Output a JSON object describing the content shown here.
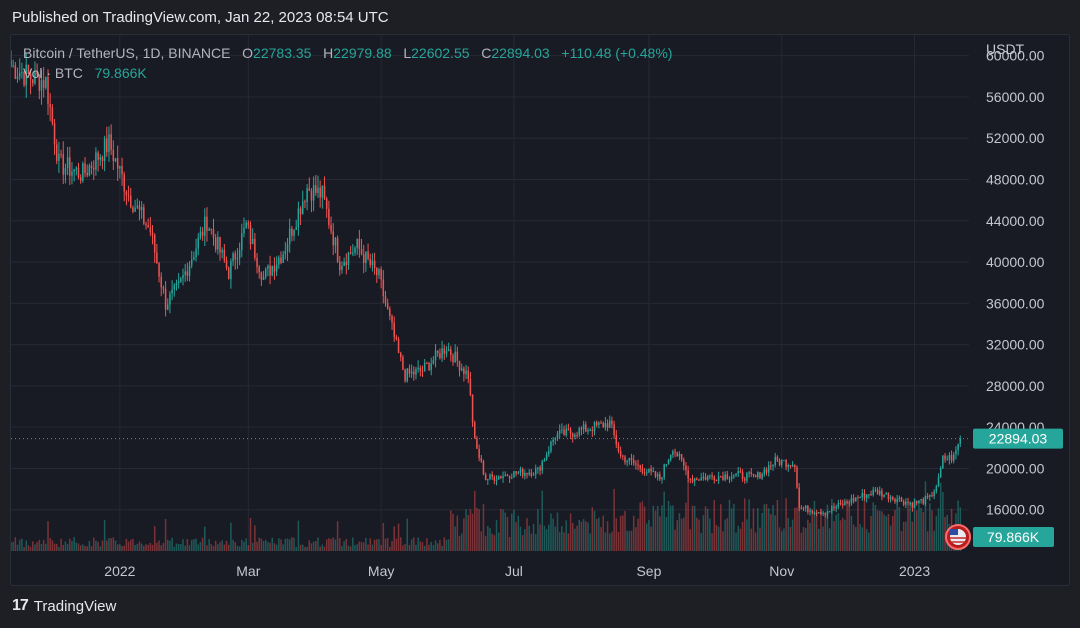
{
  "published": "Published on TradingView.com, Jan 22, 2023 08:54 UTC",
  "legend": {
    "symbol": "Bitcoin / TetherUS, 1D, BINANCE",
    "o_label": "O",
    "o_value": "22783.35",
    "h_label": "H",
    "h_value": "22979.88",
    "l_label": "L",
    "l_value": "22602.55",
    "c_label": "C",
    "c_value": "22894.03",
    "change": "+110.48 (+0.48%)",
    "vol_label": "Vol · BTC",
    "vol_value": "79.866K"
  },
  "footer": {
    "brand": "TradingView",
    "logo_text": "17"
  },
  "colors": {
    "up": "#26a69a",
    "down": "#ef5350",
    "background": "#181a24",
    "grid": "#262935"
  },
  "chart_data": {
    "type": "candlestick",
    "symbol": "BTC/USDT",
    "interval": "1D",
    "ylabel": "USDT",
    "ylim": [
      12000,
      62000
    ],
    "yticks": [
      16000,
      20000,
      24000,
      28000,
      32000,
      36000,
      40000,
      44000,
      48000,
      52000,
      56000,
      60000
    ],
    "yticks_labels": [
      "16000.00",
      "20000.00",
      "24000.00",
      "28000.00",
      "32000.00",
      "36000.00",
      "40000.00",
      "44000.00",
      "48000.00",
      "52000.00",
      "56000.00",
      "60000.00"
    ],
    "xlim": [
      "2021-11-12",
      "2023-01-26"
    ],
    "xticks": [
      {
        "date": "2022-01-01",
        "label": "2022"
      },
      {
        "date": "2022-03-01",
        "label": "Mar"
      },
      {
        "date": "2022-05-01",
        "label": "May"
      },
      {
        "date": "2022-07-01",
        "label": "Jul"
      },
      {
        "date": "2022-09-01",
        "label": "Sep"
      },
      {
        "date": "2022-11-01",
        "label": "Nov"
      },
      {
        "date": "2023-01-01",
        "label": "2023"
      }
    ],
    "last_price": 22894.03,
    "last_price_label": "22894.03",
    "last_volume_label": "79.866K",
    "price_path": [
      {
        "date": "2021-11-12",
        "close": 59000
      },
      {
        "date": "2021-11-20",
        "close": 58000
      },
      {
        "date": "2021-11-28",
        "close": 57500
      },
      {
        "date": "2021-12-04",
        "close": 49500
      },
      {
        "date": "2021-12-15",
        "close": 48500
      },
      {
        "date": "2021-12-27",
        "close": 51500
      },
      {
        "date": "2022-01-05",
        "close": 46500
      },
      {
        "date": "2022-01-15",
        "close": 43000
      },
      {
        "date": "2022-01-22",
        "close": 36000
      },
      {
        "date": "2022-01-28",
        "close": 37500
      },
      {
        "date": "2022-02-10",
        "close": 44000
      },
      {
        "date": "2022-02-20",
        "close": 39000
      },
      {
        "date": "2022-02-28",
        "close": 43500
      },
      {
        "date": "2022-03-08",
        "close": 38500
      },
      {
        "date": "2022-03-17",
        "close": 41000
      },
      {
        "date": "2022-03-28",
        "close": 47200
      },
      {
        "date": "2022-04-04",
        "close": 46500
      },
      {
        "date": "2022-04-12",
        "close": 40000
      },
      {
        "date": "2022-04-20",
        "close": 41500
      },
      {
        "date": "2022-04-30",
        "close": 38500
      },
      {
        "date": "2022-05-09",
        "close": 31000
      },
      {
        "date": "2022-05-12",
        "close": 29000
      },
      {
        "date": "2022-05-20",
        "close": 29500
      },
      {
        "date": "2022-05-31",
        "close": 31800
      },
      {
        "date": "2022-06-10",
        "close": 29000
      },
      {
        "date": "2022-06-13",
        "close": 22500
      },
      {
        "date": "2022-06-18",
        "close": 19000
      },
      {
        "date": "2022-06-30",
        "close": 19500
      },
      {
        "date": "2022-07-12",
        "close": 19800
      },
      {
        "date": "2022-07-20",
        "close": 23200
      },
      {
        "date": "2022-07-28",
        "close": 23500
      },
      {
        "date": "2022-08-14",
        "close": 24400
      },
      {
        "date": "2022-08-19",
        "close": 21200
      },
      {
        "date": "2022-09-06",
        "close": 19000
      },
      {
        "date": "2022-09-12",
        "close": 22100
      },
      {
        "date": "2022-09-20",
        "close": 19000
      },
      {
        "date": "2022-10-10",
        "close": 19400
      },
      {
        "date": "2022-10-20",
        "close": 19100
      },
      {
        "date": "2022-10-29",
        "close": 20700
      },
      {
        "date": "2022-11-07",
        "close": 20500
      },
      {
        "date": "2022-11-09",
        "close": 16200
      },
      {
        "date": "2022-11-21",
        "close": 15800
      },
      {
        "date": "2022-12-05",
        "close": 17100
      },
      {
        "date": "2022-12-14",
        "close": 17800
      },
      {
        "date": "2022-12-31",
        "close": 16550
      },
      {
        "date": "2023-01-08",
        "close": 17100
      },
      {
        "date": "2023-01-12",
        "close": 18800
      },
      {
        "date": "2023-01-14",
        "close": 20900
      },
      {
        "date": "2023-01-19",
        "close": 21100
      },
      {
        "date": "2023-01-22",
        "close": 22894
      }
    ]
  }
}
